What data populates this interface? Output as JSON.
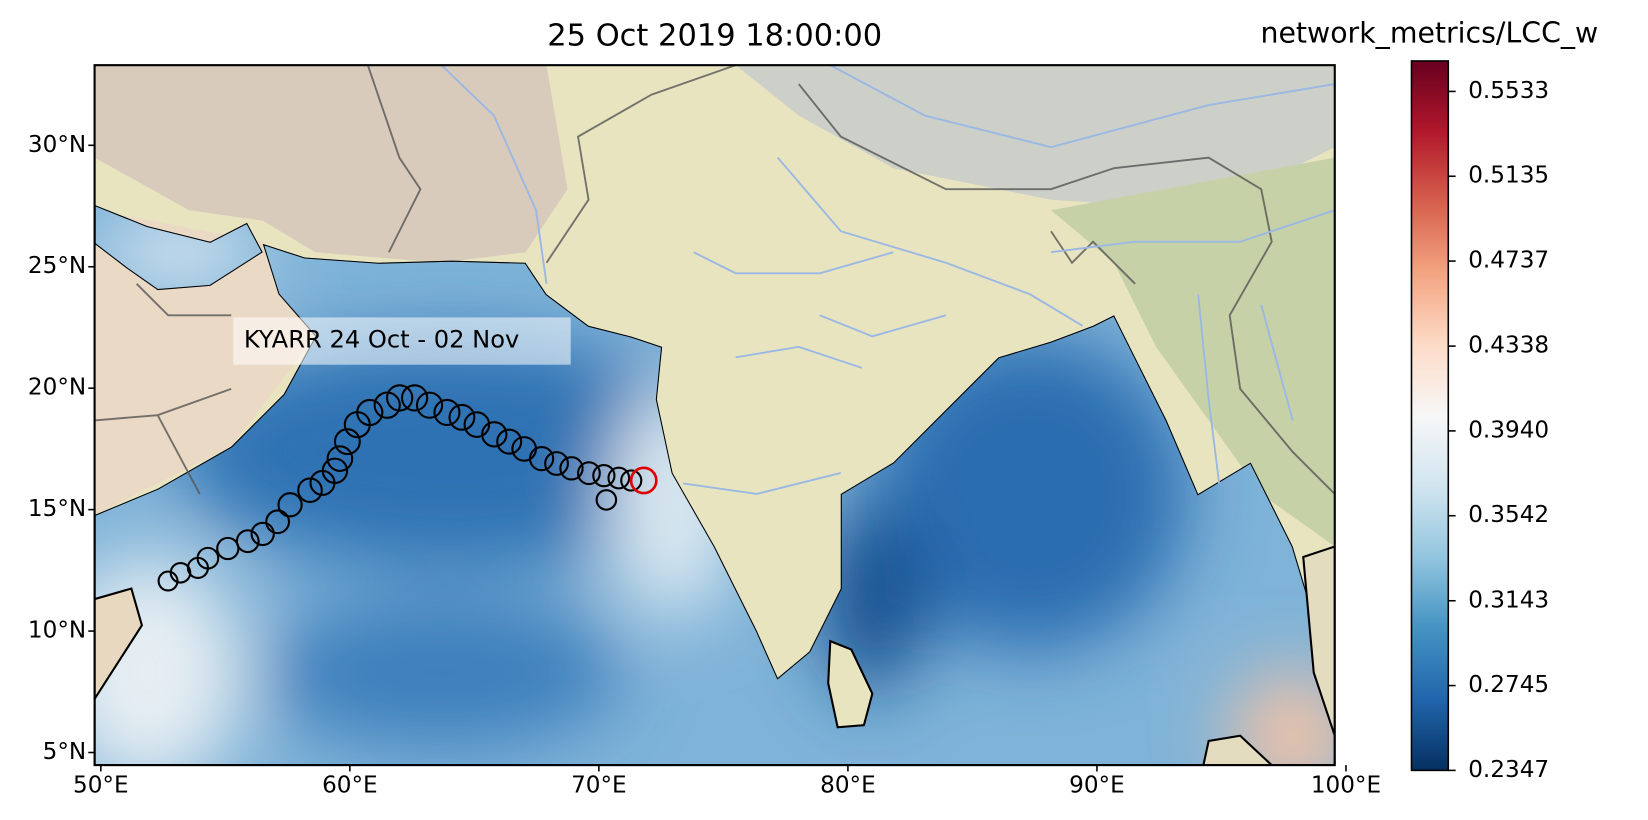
{
  "chart_data": {
    "type": "scatter",
    "title": "25 Oct 2019 18:00:00",
    "annotation": "KYARR 24 Oct - 02 Nov",
    "xlim": [
      49.75,
      99.55
    ],
    "ylim": [
      4.48,
      33.3
    ],
    "xticks": [
      {
        "value": 50,
        "label": "50°E"
      },
      {
        "value": 60,
        "label": "60°E"
      },
      {
        "value": 70,
        "label": "70°E"
      },
      {
        "value": 80,
        "label": "80°E"
      },
      {
        "value": 90,
        "label": "90°E"
      },
      {
        "value": 100,
        "label": "100°E"
      }
    ],
    "yticks": [
      {
        "value": 5,
        "label": "5°N"
      },
      {
        "value": 10,
        "label": "10°N"
      },
      {
        "value": 15,
        "label": "15°N"
      },
      {
        "value": 20,
        "label": "20°N"
      },
      {
        "value": 25,
        "label": "25°N"
      },
      {
        "value": 30,
        "label": "30°N"
      }
    ],
    "track": {
      "color": "#000000",
      "x": [
        52.7,
        53.2,
        53.9,
        54.3,
        55.1,
        55.9,
        56.5,
        57.1,
        57.6,
        58.4,
        58.9,
        59.4,
        59.6,
        59.9,
        60.3,
        60.8,
        61.5,
        62.0,
        62.6,
        63.2,
        63.9,
        64.5,
        65.1,
        65.8,
        66.4,
        67.0,
        67.7,
        68.3,
        68.9,
        69.6,
        70.2,
        70.8,
        71.3,
        70.3
      ],
      "y": [
        12.06,
        12.4,
        12.6,
        13.0,
        13.4,
        13.7,
        14.0,
        14.5,
        15.2,
        15.8,
        16.1,
        16.6,
        17.1,
        17.8,
        18.5,
        19.0,
        19.3,
        19.6,
        19.6,
        19.3,
        19.0,
        18.8,
        18.5,
        18.1,
        17.8,
        17.5,
        17.1,
        16.9,
        16.7,
        16.5,
        16.4,
        16.3,
        16.2,
        15.4
      ]
    },
    "current": {
      "color": "#e00000",
      "x": 71.8,
      "y": 16.2
    },
    "colorbar": {
      "title": "network_metrics/LCC_w",
      "colormap": "RdBu_r",
      "clim": [
        0.2347,
        0.5676
      ],
      "ticks": [
        0.2347,
        {
          "value": 0.2745,
          "label": "0.2745"
        },
        0.3143,
        0.3542,
        {
          "value": 0.394,
          "label": "0.3940"
        },
        0.4338,
        0.4737,
        0.5135,
        0.5533
      ]
    }
  }
}
